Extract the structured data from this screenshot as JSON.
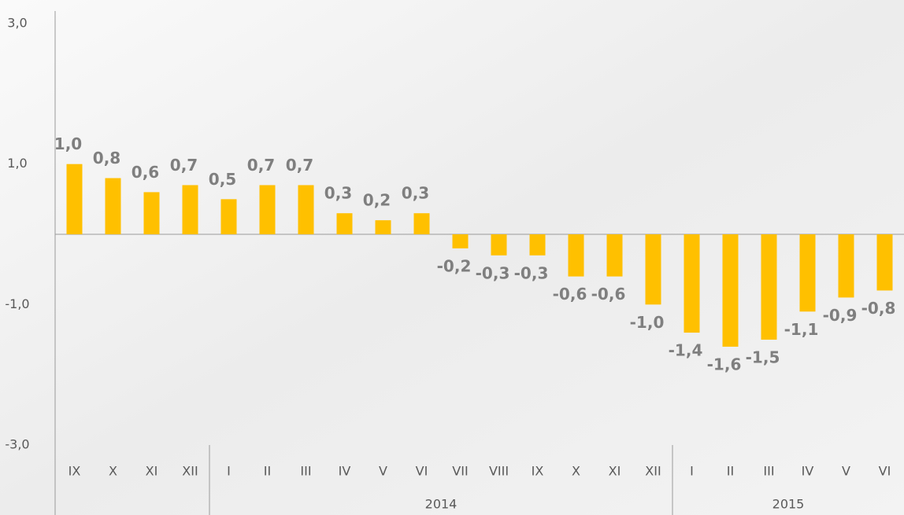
{
  "chart_data": {
    "type": "bar",
    "categories": [
      "IX",
      "X",
      "XI",
      "XII",
      "I",
      "II",
      "III",
      "IV",
      "V",
      "VI",
      "VII",
      "VIII",
      "IX",
      "X",
      "XI",
      "XII",
      "I",
      "II",
      "III",
      "IV",
      "V",
      "VI"
    ],
    "groups": [
      {
        "name": null,
        "count": 4
      },
      {
        "name": "2014",
        "count": 12
      },
      {
        "name": "2015",
        "count": 6
      }
    ],
    "values": [
      1.0,
      0.8,
      0.6,
      0.7,
      0.5,
      0.7,
      0.7,
      0.3,
      0.2,
      0.3,
      -0.2,
      -0.3,
      -0.3,
      -0.6,
      -0.6,
      -1.0,
      -1.4,
      -1.6,
      -1.5,
      -1.1,
      -0.9,
      -0.8
    ],
    "value_labels": [
      "1,0",
      "0,8",
      "0,6",
      "0,7",
      "0,5",
      "0,7",
      "0,7",
      "0,3",
      "0,2",
      "0,3",
      "-0,2",
      "-0,3",
      "-0,3",
      "-0,6",
      "-0,6",
      "-1,0",
      "-1,4",
      "-1,6",
      "-1,5",
      "-1,1",
      "-0,9",
      "-0,8"
    ],
    "color": "#ffc000",
    "ylim": [
      -3,
      3
    ],
    "yticks": [
      {
        "value": 3,
        "label": "3,0"
      },
      {
        "value": 1,
        "label": "1,0"
      },
      {
        "value": -1,
        "label": "-1,0"
      },
      {
        "value": -3,
        "label": "-3,0"
      }
    ],
    "grid": false
  }
}
